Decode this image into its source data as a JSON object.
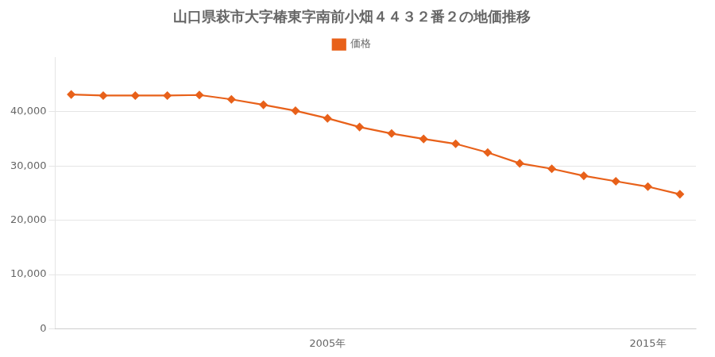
{
  "chart_data": {
    "type": "line",
    "title": "山口県萩市大字椿東字南前小畑４４３２番２の地価推移",
    "x": [
      1997,
      1998,
      1999,
      2000,
      2001,
      2002,
      2003,
      2004,
      2005,
      2006,
      2007,
      2008,
      2009,
      2010,
      2011,
      2012,
      2013,
      2014,
      2015,
      2016
    ],
    "series": [
      {
        "name": "価格",
        "color": "#e8611a",
        "marker": "diamond",
        "values": [
          43200,
          43000,
          43000,
          43000,
          43100,
          42300,
          41300,
          40200,
          38800,
          37200,
          36000,
          35000,
          34100,
          32500,
          30500,
          29500,
          28200,
          27200,
          26200,
          24800
        ]
      }
    ],
    "xlim": [
      1996.5,
      2016.5
    ],
    "xticks": [
      {
        "value": 2005,
        "label": "2005年"
      },
      {
        "value": 2015,
        "label": "2015年"
      }
    ],
    "ylim": [
      0,
      50000
    ],
    "yticks": [
      0,
      {
        "value": 10000,
        "label": "10,000"
      },
      {
        "value": 20000,
        "label": "20,000"
      },
      {
        "value": 30000,
        "label": "30,000"
      },
      {
        "value": 40000,
        "label": "40,000"
      }
    ],
    "grid": "y",
    "legend": "top"
  }
}
